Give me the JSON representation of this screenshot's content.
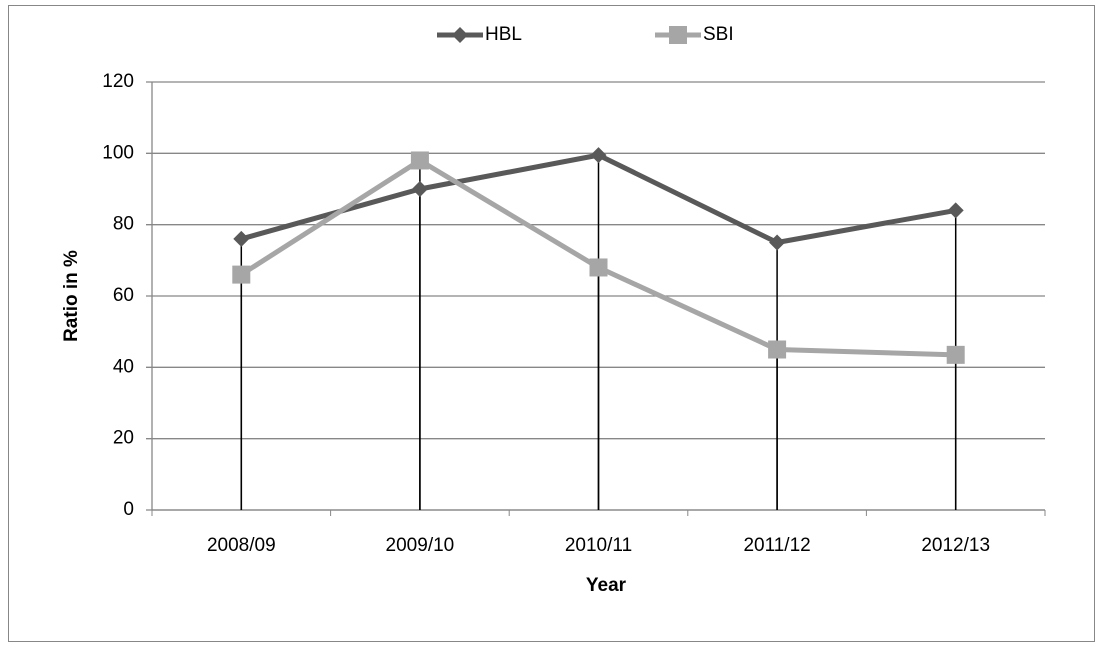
{
  "chart_data": {
    "type": "line",
    "categories": [
      "2008/09",
      "2009/10",
      "2010/11",
      "2011/12",
      "2012/13"
    ],
    "series": [
      {
        "name": "HBL",
        "color": "#595959",
        "marker": "diamond",
        "values": [
          76,
          90,
          99.5,
          75,
          84
        ]
      },
      {
        "name": "SBI",
        "color": "#a6a6a6",
        "marker": "square",
        "values": [
          66,
          98,
          68,
          45,
          43.5
        ]
      }
    ],
    "x_label": "Year",
    "y_label": "Ratio in %",
    "ylim": [
      0,
      120
    ],
    "yticks": [
      0,
      20,
      40,
      60,
      80,
      100,
      120
    ],
    "grid": true,
    "drop_lines": true,
    "legend": "top"
  }
}
